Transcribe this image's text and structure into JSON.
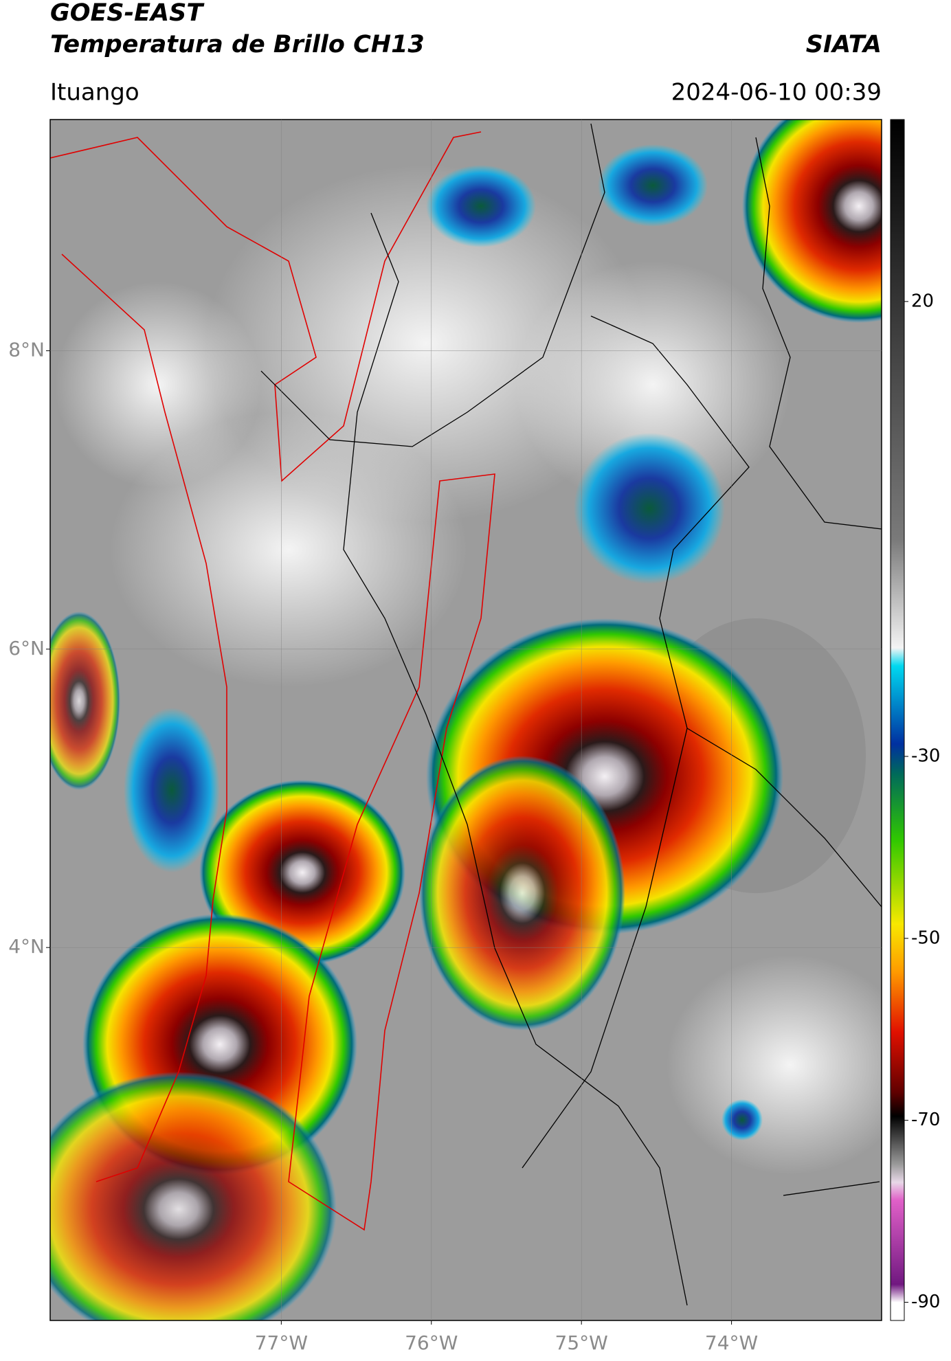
{
  "header": {
    "title": "GOES-EAST",
    "subtitle": "Temperatura de Brillo CH13",
    "organization": "SIATA",
    "location": "Ituango",
    "datetime": "2024-06-10 00:39"
  },
  "map": {
    "xlim": [
      -78.54,
      -73.0
    ],
    "ylim": [
      1.5,
      9.55
    ],
    "xticks": [
      {
        "value": -77,
        "label": "77°W"
      },
      {
        "value": -76,
        "label": "76°W"
      },
      {
        "value": -75,
        "label": "75°W"
      },
      {
        "value": -74,
        "label": "74°W"
      }
    ],
    "yticks": [
      {
        "value": 4,
        "label": "4°N"
      },
      {
        "value": 6,
        "label": "6°N"
      },
      {
        "value": 8,
        "label": "8°N"
      }
    ],
    "grid": true
  },
  "colorbar": {
    "lim": [
      -92,
      40
    ],
    "ticks": [
      20,
      -30,
      -50,
      -70,
      -90
    ]
  }
}
